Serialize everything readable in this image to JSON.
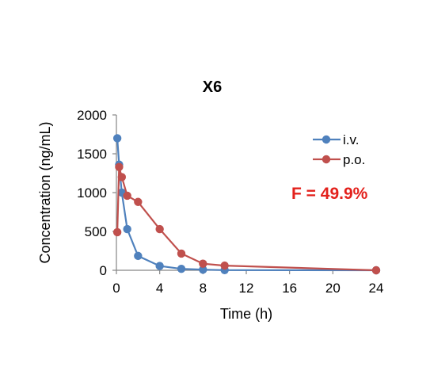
{
  "chart_data": {
    "type": "line",
    "title": "X6",
    "xlabel": "Time (h)",
    "ylabel": "Concentration (ng/mL)",
    "xlim": [
      0,
      24
    ],
    "ylim": [
      0,
      2000
    ],
    "xticks": [
      0,
      4,
      8,
      12,
      16,
      20,
      24
    ],
    "yticks": [
      0,
      500,
      1000,
      1500,
      2000
    ],
    "grid": false,
    "legend_position": "top-right",
    "annotation": {
      "text": "F = 49.9%",
      "color": "#E3211C"
    },
    "series": [
      {
        "name": "i.v.",
        "color": "#4F81BD",
        "x": [
          0.083,
          0.25,
          0.5,
          1,
          2,
          4,
          6,
          8,
          10,
          24
        ],
        "y": [
          1700,
          1360,
          1000,
          530,
          185,
          55,
          18,
          8,
          2,
          0
        ]
      },
      {
        "name": "p.o.",
        "color": "#C0504D",
        "x": [
          0.083,
          0.25,
          0.5,
          1,
          2,
          4,
          6,
          8,
          10,
          24
        ],
        "y": [
          490,
          1330,
          1200,
          960,
          880,
          530,
          215,
          85,
          60,
          0
        ]
      }
    ]
  }
}
